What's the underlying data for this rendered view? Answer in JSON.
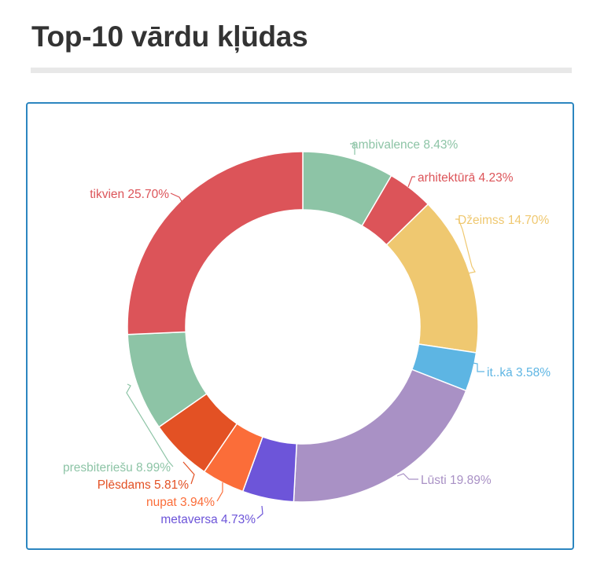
{
  "page": {
    "title": "Top-10 vārdu kļūdas"
  },
  "chart_data": {
    "type": "pie",
    "variant": "donut",
    "title": "Top-10 vārdu kļūdas",
    "slices": [
      {
        "label": "ambivalence",
        "value": 8.43,
        "display": "ambivalence 8.43%",
        "color": "#8dc4a6"
      },
      {
        "label": "arhitektūrā",
        "value": 4.23,
        "display": "arhitektūrā 4.23%",
        "color": "#dc5459"
      },
      {
        "label": "Džeimss",
        "value": 14.7,
        "display": "Džeimss 14.70%",
        "color": "#efc870"
      },
      {
        "label": "it..kā",
        "value": 3.58,
        "display": "it..kā 3.58%",
        "color": "#5db5e3"
      },
      {
        "label": "Lūsti",
        "value": 19.89,
        "display": "Lūsti 19.89%",
        "color": "#a991c5"
      },
      {
        "label": "metaversa",
        "value": 4.73,
        "display": "metaversa 4.73%",
        "color": "#6d55d9"
      },
      {
        "label": "nupat",
        "value": 3.94,
        "display": "nupat 3.94%",
        "color": "#fb6d39"
      },
      {
        "label": "Plēsdams",
        "value": 5.81,
        "display": "Plēsdams 5.81%",
        "color": "#e35124"
      },
      {
        "label": "presbiteriešu",
        "value": 8.99,
        "display": "presbiteriešu 8.99%",
        "color": "#8dc4a6"
      },
      {
        "label": "tikvien",
        "value": 25.7,
        "display": "tikvien 25.70%",
        "color": "#dc5459"
      }
    ],
    "legend": "none",
    "labels": "outside with leader lines"
  }
}
